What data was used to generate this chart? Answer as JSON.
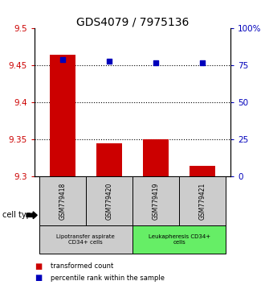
{
  "title": "GDS4079 / 7975136",
  "samples": [
    "GSM779418",
    "GSM779420",
    "GSM779419",
    "GSM779421"
  ],
  "transformed_counts": [
    9.465,
    9.345,
    9.35,
    9.315
  ],
  "percentile_ranks": [
    79,
    78,
    77,
    77
  ],
  "ylim_left": [
    9.3,
    9.5
  ],
  "yticks_left": [
    9.3,
    9.35,
    9.4,
    9.45,
    9.5
  ],
  "ylim_right": [
    0,
    100
  ],
  "yticks_right": [
    0,
    25,
    50,
    75,
    100
  ],
  "ytick_labels_right": [
    "0",
    "25",
    "50",
    "75",
    "100%"
  ],
  "bar_color": "#cc0000",
  "scatter_color": "#0000bb",
  "bar_width": 0.55,
  "hlines": [
    9.35,
    9.4,
    9.45
  ],
  "group1_samples": [
    0,
    1
  ],
  "group2_samples": [
    2,
    3
  ],
  "group1_label": "Lipotransfer aspirate\nCD34+ cells",
  "group2_label": "Leukapheresis CD34+\ncells",
  "group1_color": "#cccccc",
  "group2_color": "#66ee66",
  "cell_type_label": "cell type",
  "legend_bar_label": "transformed count",
  "legend_scatter_label": "percentile rank within the sample",
  "title_fontsize": 10,
  "axis_tick_fontsize": 7.5,
  "left_tick_color": "#cc0000",
  "right_tick_color": "#0000bb",
  "ybase": 9.3
}
